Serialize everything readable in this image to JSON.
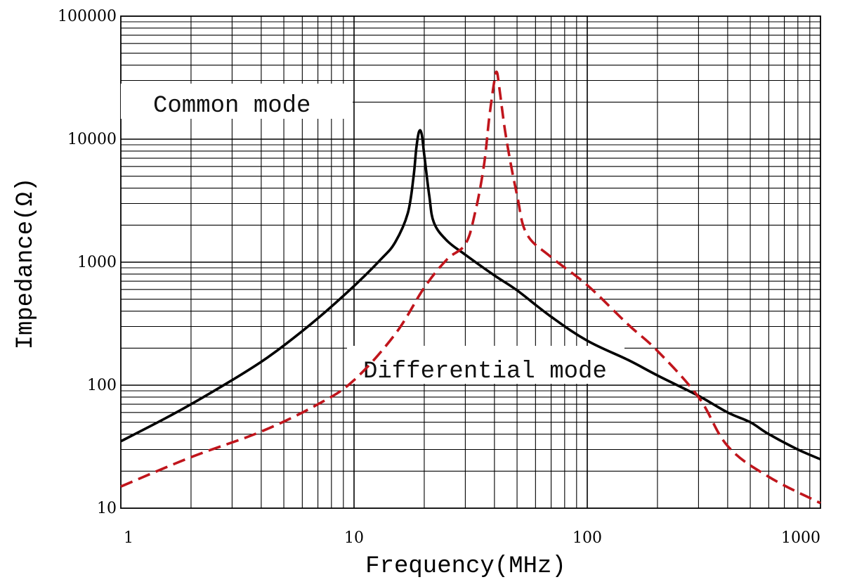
{
  "chart_data": {
    "type": "line",
    "title": "",
    "xlabel": "Frequency(MHz)",
    "ylabel": "Impedance(Ω)",
    "xscale": "log",
    "yscale": "log",
    "xlim": [
      1,
      1000
    ],
    "ylim": [
      10,
      100000
    ],
    "grid": true,
    "x_ticks": [
      "1",
      "10",
      "100",
      "1000"
    ],
    "y_ticks": [
      "10",
      "100",
      "1000",
      "10000",
      "100000"
    ],
    "annotations": [
      "Common mode",
      "Differential mode"
    ],
    "series": [
      {
        "color": "#000000",
        "style": "solid",
        "points": [
          [
            1,
            35
          ],
          [
            1.5,
            52
          ],
          [
            2,
            70
          ],
          [
            3,
            110
          ],
          [
            4,
            155
          ],
          [
            5,
            210
          ],
          [
            7,
            350
          ],
          [
            10,
            640
          ],
          [
            13,
            1050
          ],
          [
            15,
            1450
          ],
          [
            17,
            2500
          ],
          [
            18,
            5000
          ],
          [
            18.5,
            8500
          ],
          [
            19,
            11500
          ],
          [
            19.5,
            11000
          ],
          [
            20,
            7500
          ],
          [
            21,
            3500
          ],
          [
            22,
            2100
          ],
          [
            25,
            1500
          ],
          [
            30,
            1150
          ],
          [
            40,
            780
          ],
          [
            50,
            590
          ],
          [
            70,
            360
          ],
          [
            100,
            230
          ],
          [
            150,
            160
          ],
          [
            200,
            120
          ],
          [
            300,
            82
          ],
          [
            400,
            60
          ],
          [
            500,
            50
          ],
          [
            600,
            40
          ],
          [
            800,
            30
          ],
          [
            1000,
            25
          ]
        ]
      },
      {
        "color": "#c0151c",
        "style": "dashed",
        "points": [
          [
            1,
            15
          ],
          [
            2,
            26
          ],
          [
            4,
            42
          ],
          [
            7,
            70
          ],
          [
            10,
            110
          ],
          [
            15,
            260
          ],
          [
            20,
            620
          ],
          [
            25,
            1050
          ],
          [
            30,
            1400
          ],
          [
            33,
            2500
          ],
          [
            36,
            6000
          ],
          [
            38,
            15000
          ],
          [
            40,
            30000
          ],
          [
            41,
            35000
          ],
          [
            42,
            26000
          ],
          [
            45,
            10000
          ],
          [
            50,
            3500
          ],
          [
            55,
            1700
          ],
          [
            70,
            1100
          ],
          [
            100,
            650
          ],
          [
            150,
            310
          ],
          [
            200,
            190
          ],
          [
            300,
            80
          ],
          [
            400,
            32
          ],
          [
            600,
            18
          ],
          [
            1000,
            11
          ]
        ]
      }
    ]
  }
}
